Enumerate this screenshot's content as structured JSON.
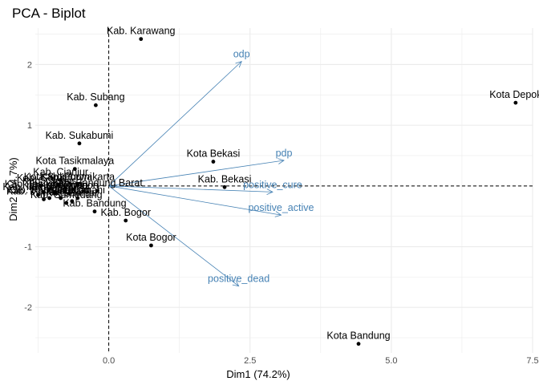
{
  "chart_data": {
    "type": "scatter",
    "title": "PCA - Biplot",
    "xlabel": "Dim1 (74.2%)",
    "ylabel": "Dim2 (14.7%)",
    "xlim": [
      -1.3,
      7.5
    ],
    "ylim": [
      -2.75,
      2.6
    ],
    "x_ticks": [
      0,
      2.5,
      5,
      7.5
    ],
    "x_tick_labels": [
      "0.0",
      "2.5",
      "5.0",
      "7.5"
    ],
    "y_ticks": [
      -2,
      -1,
      0,
      1,
      2
    ],
    "y_tick_labels": [
      "-2",
      "-1",
      "0",
      "1",
      "2"
    ],
    "grid": true,
    "colors": {
      "points": "#000000",
      "variables": "#4682b4",
      "grid": "#ebebeb",
      "reference": "#000000"
    },
    "individuals": [
      {
        "label": "Kab. Karawang",
        "x": 0.57,
        "y": 2.42
      },
      {
        "label": "Kota Depok",
        "x": 7.2,
        "y": 1.37
      },
      {
        "label": "Kab. Subang",
        "x": -0.23,
        "y": 1.33
      },
      {
        "label": "Kab. Sukabumi",
        "x": -0.52,
        "y": 0.7
      },
      {
        "label": "Kota Bekasi",
        "x": 1.85,
        "y": 0.4
      },
      {
        "label": "Kota Tasikmalaya",
        "x": -0.6,
        "y": 0.28
      },
      {
        "label": "Kab. Bekasi",
        "x": 2.05,
        "y": -0.02
      },
      {
        "label": "Kab. Cianjur",
        "x": -0.85,
        "y": 0.1
      },
      {
        "label": "Kab. Purwakarta",
        "x": -0.55,
        "y": 0.02
      },
      {
        "label": "Kab. Bandung Barat",
        "x": -0.2,
        "y": -0.08
      },
      {
        "label": "Kota Cimahi",
        "x": -0.55,
        "y": -0.2
      },
      {
        "label": "Kab. Bandung",
        "x": -0.25,
        "y": -0.42
      },
      {
        "label": "Kab. Bogor",
        "x": 0.3,
        "y": -0.57
      },
      {
        "label": "Kota Bogor",
        "x": 0.75,
        "y": -0.98
      },
      {
        "label": "Kota Bandung",
        "x": 4.42,
        "y": -2.6
      },
      {
        "label": "Kab. Garut",
        "x": -1.2,
        "y": 0.0
      },
      {
        "label": "Kab. Tasikmalaya",
        "x": -1.15,
        "y": -0.1
      },
      {
        "label": "Kab. Ciamis",
        "x": -1.05,
        "y": -0.05
      },
      {
        "label": "Kab. Kuningan",
        "x": -0.95,
        "y": -0.12
      },
      {
        "label": "Kab. Cirebon",
        "x": -0.85,
        "y": -0.2
      },
      {
        "label": "Kab. Majalengka",
        "x": -1.15,
        "y": -0.22
      },
      {
        "label": "Kab. Sumedang",
        "x": -0.75,
        "y": -0.28
      },
      {
        "label": "Kab. Indramayu",
        "x": -1.25,
        "y": -0.15
      },
      {
        "label": "Kota Cirebon",
        "x": -0.7,
        "y": -0.12
      },
      {
        "label": "Kota Sukabumi",
        "x": -0.9,
        "y": 0.02
      },
      {
        "label": "Kota Banjar",
        "x": -0.65,
        "y": -0.25
      },
      {
        "label": "Kab. Pangandaran",
        "x": -1.05,
        "y": -0.2
      }
    ],
    "variables": [
      {
        "label": "odp",
        "x": 2.35,
        "y": 2.05
      },
      {
        "label": "pdp",
        "x": 3.1,
        "y": 0.42
      },
      {
        "label": "positive_cure",
        "x": 2.9,
        "y": -0.1
      },
      {
        "label": "positive_active",
        "x": 3.05,
        "y": -0.48
      },
      {
        "label": "positive_dead",
        "x": 2.3,
        "y": -1.65
      }
    ]
  }
}
